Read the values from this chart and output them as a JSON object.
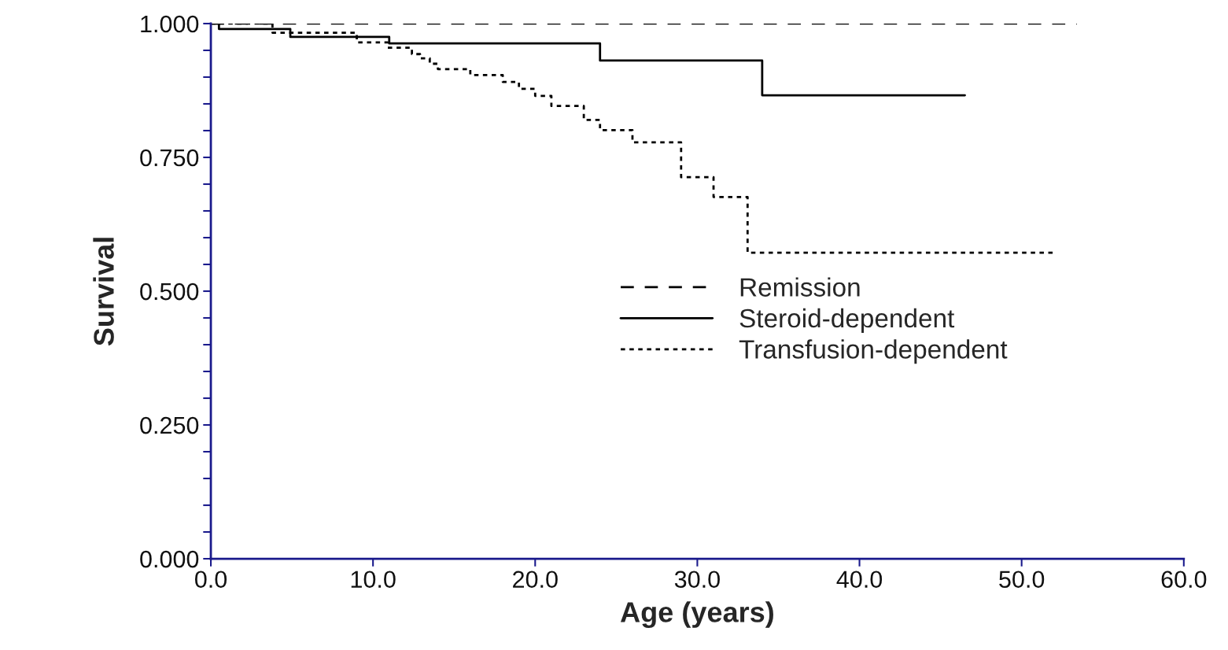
{
  "chart_data": {
    "type": "step",
    "xlabel": "Age (years)",
    "ylabel": "Survival",
    "xlim": [
      0,
      60
    ],
    "ylim": [
      0,
      1
    ],
    "xticks": [
      {
        "value": 0,
        "label": "0.0"
      },
      {
        "value": 10,
        "label": "10.0"
      },
      {
        "value": 20,
        "label": "20.0"
      },
      {
        "value": 30,
        "label": "30.0"
      },
      {
        "value": 40,
        "label": "40.0"
      },
      {
        "value": 50,
        "label": "50.0"
      },
      {
        "value": 60,
        "label": "60.0"
      }
    ],
    "yticks": [
      {
        "value": 0,
        "label": "0.000"
      },
      {
        "value": 0.05,
        "label": null
      },
      {
        "value": 0.1,
        "label": null
      },
      {
        "value": 0.15,
        "label": null
      },
      {
        "value": 0.2,
        "label": null
      },
      {
        "value": 0.25,
        "label": "0.250"
      },
      {
        "value": 0.3,
        "label": null
      },
      {
        "value": 0.35,
        "label": null
      },
      {
        "value": 0.4,
        "label": null
      },
      {
        "value": 0.45,
        "label": null
      },
      {
        "value": 0.5,
        "label": "0.500"
      },
      {
        "value": 0.55,
        "label": null
      },
      {
        "value": 0.6,
        "label": null
      },
      {
        "value": 0.65,
        "label": null
      },
      {
        "value": 0.7,
        "label": null
      },
      {
        "value": 0.75,
        "label": "0.750"
      },
      {
        "value": 0.8,
        "label": null
      },
      {
        "value": 0.85,
        "label": null
      },
      {
        "value": 0.9,
        "label": null
      },
      {
        "value": 0.95,
        "label": null
      },
      {
        "value": 1,
        "label": "1.000"
      }
    ],
    "grid": false,
    "legend": "right",
    "series": [
      {
        "name": "Remission",
        "color": "#000000",
        "line_style": "dashed",
        "x": [
          0,
          53.4
        ],
        "values": [
          1.0,
          1.0
        ]
      },
      {
        "name": "Steroid-dependent",
        "color": "#000000",
        "line_style": "solid",
        "x": [
          0,
          0.5,
          4.9,
          11.0,
          24.0,
          34.0,
          46.5
        ],
        "values": [
          1.0,
          0.99,
          0.975,
          0.963,
          0.931,
          0.866,
          0.866
        ]
      },
      {
        "name": "Transfusion-dependent",
        "color": "#000000",
        "line_style": "dotted",
        "x": [
          0,
          3.8,
          9.0,
          10.9,
          12.4,
          12.9,
          13.5,
          14.0,
          16.0,
          18.0,
          19.0,
          20.0,
          21.0,
          23.0,
          24.0,
          26.0,
          29.0,
          31.0,
          33.1,
          52.0
        ],
        "values": [
          1.0,
          0.983,
          0.965,
          0.955,
          0.943,
          0.935,
          0.925,
          0.915,
          0.904,
          0.891,
          0.878,
          0.865,
          0.846,
          0.82,
          0.801,
          0.778,
          0.713,
          0.676,
          0.572,
          0.572
        ]
      }
    ]
  }
}
